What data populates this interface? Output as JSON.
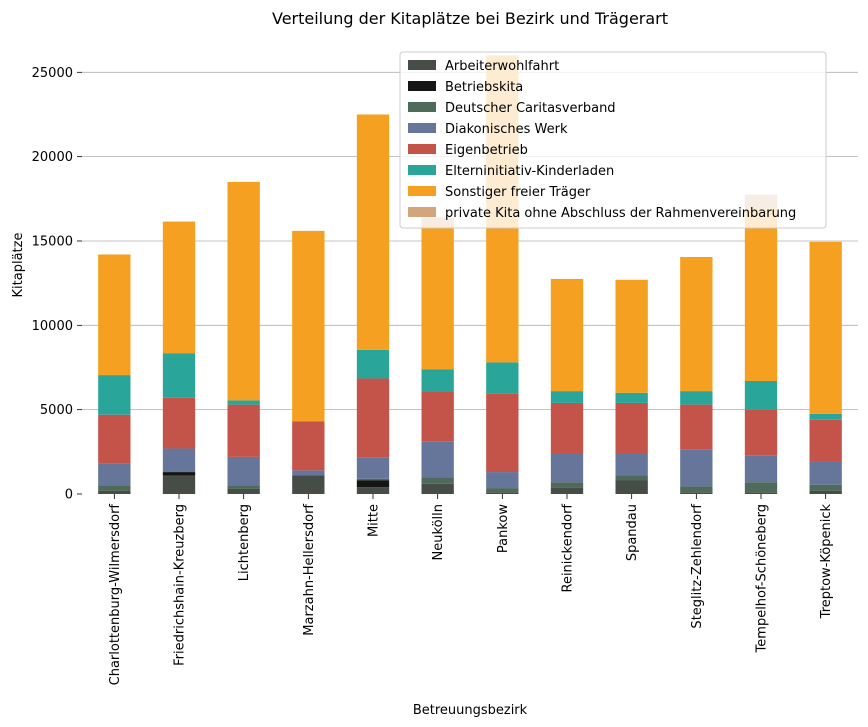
{
  "chart_data": {
    "type": "bar",
    "stacked": true,
    "title": "Verteilung der Kitaplätze bei Bezirk und Trägerart",
    "xlabel": "Betreuungsbezirk",
    "ylabel": "Kitaplätze",
    "ylim": [
      0,
      26500
    ],
    "yticks": [
      0,
      5000,
      10000,
      15000,
      20000,
      25000
    ],
    "ytick_labels": [
      "0",
      "5000",
      "10000",
      "15000",
      "20000",
      "25000"
    ],
    "grid": "horizontal",
    "legend_position": "top-right",
    "categories": [
      "Charlottenburg-Wilmersdorf",
      "Friedrichshain-Kreuzberg",
      "Lichtenberg",
      "Marzahn-Hellersdorf",
      "Mitte",
      "Neukölln",
      "Pankow",
      "Reinickendorf",
      "Spandau",
      "Steglitz-Zehlendorf",
      "Tempelhof-Schöneberg",
      "Treptow-Köpenick"
    ],
    "series": [
      {
        "name": "Arbeiterwohlfahrt",
        "color": "#464d47",
        "values": [
          200,
          1100,
          300,
          1100,
          400,
          600,
          100,
          400,
          800,
          100,
          100,
          200
        ]
      },
      {
        "name": "Betriebskita",
        "color": "#151515",
        "values": [
          0,
          200,
          0,
          0,
          400,
          0,
          0,
          0,
          0,
          0,
          0,
          0
        ]
      },
      {
        "name": "Deutscher Caritasverband",
        "color": "#4e6a5a",
        "values": [
          300,
          50,
          200,
          0,
          100,
          400,
          250,
          300,
          300,
          350,
          600,
          350
        ]
      },
      {
        "name": "Diakonisches Werk",
        "color": "#66759a",
        "values": [
          1300,
          1350,
          1700,
          300,
          1250,
          2100,
          950,
          1700,
          1300,
          2200,
          1600,
          1350
        ]
      },
      {
        "name": "Eigenbetrieb",
        "color": "#c4534a",
        "values": [
          2900,
          3000,
          3100,
          2900,
          4700,
          3000,
          4650,
          3000,
          3000,
          2650,
          2700,
          2500
        ]
      },
      {
        "name": "Elterninitiativ-Kinderladen",
        "color": "#2aa59a",
        "values": [
          2350,
          2650,
          250,
          0,
          1700,
          1300,
          1850,
          700,
          600,
          800,
          1700,
          350
        ]
      },
      {
        "name": "Sonstiger freier Träger",
        "color": "#f5a021",
        "values": [
          7150,
          7800,
          12950,
          11300,
          13950,
          8550,
          18200,
          6650,
          6700,
          7950,
          10250,
          10200
        ]
      },
      {
        "name": "private Kita ohne Abschluss der Rahmenvereinbarung",
        "color": "#d2a67a",
        "values": [
          0,
          0,
          0,
          0,
          0,
          450,
          0,
          0,
          0,
          0,
          800,
          0
        ]
      }
    ]
  }
}
